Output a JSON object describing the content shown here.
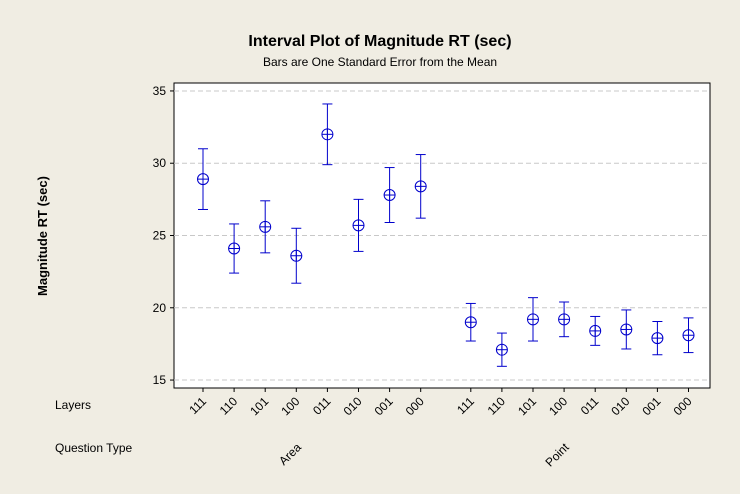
{
  "chart_data": {
    "type": "interval",
    "title": "Interval Plot of Magnitude RT (sec)",
    "subtitle": "Bars are One Standard Error from the Mean",
    "y_label": "Magnitude RT (sec)",
    "row_labels": [
      "Layers",
      "Question Type"
    ],
    "categories": [
      "111",
      "110",
      "101",
      "100",
      "011",
      "010",
      "001",
      "000"
    ],
    "series": [
      {
        "name": "Area",
        "color": "#0000cc",
        "values": [
          28.9,
          24.1,
          25.6,
          23.6,
          32.0,
          25.7,
          27.8,
          28.4
        ],
        "errors": [
          2.1,
          1.7,
          1.8,
          1.9,
          2.1,
          1.8,
          1.9,
          2.2
        ]
      },
      {
        "name": "Point",
        "color": "#0000cc",
        "values": [
          19.0,
          17.1,
          19.2,
          19.2,
          18.4,
          18.5,
          17.9,
          18.1
        ],
        "errors": [
          1.3,
          1.15,
          1.5,
          1.2,
          1.0,
          1.35,
          1.15,
          1.2
        ]
      }
    ],
    "ylim": [
      14.45,
      35.55
    ],
    "yticks": [
      15,
      20,
      25,
      30,
      35
    ],
    "grid": true
  }
}
